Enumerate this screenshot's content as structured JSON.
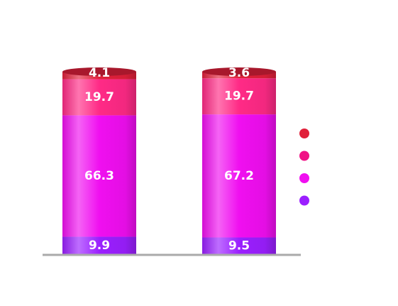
{
  "chart_data": {
    "type": "bar",
    "stacked": true,
    "style": "3d-cylinder",
    "categories": [
      "",
      ""
    ],
    "ylim": [
      0,
      100
    ],
    "grid": false,
    "legend_position": "right",
    "series": [
      {
        "color": "#9b1fff",
        "values": [
          9.9,
          9.5
        ]
      },
      {
        "color": "#f00ff0",
        "values": [
          66.3,
          67.2
        ]
      },
      {
        "color": "#ff2a86",
        "values": [
          19.7,
          19.7
        ]
      },
      {
        "color": "#e0203a",
        "values": [
          4.1,
          3.6
        ]
      }
    ],
    "data_labels": [
      [
        "9.9",
        "9.5"
      ],
      [
        "66.3",
        "67.2"
      ],
      [
        "19.7",
        "19.7"
      ],
      [
        "4.1",
        "3.6"
      ]
    ],
    "legend_colors": [
      "#e0203a",
      "#f01286",
      "#f00ff0",
      "#9b1fff"
    ],
    "baseline_color": "#aaaaaa"
  }
}
